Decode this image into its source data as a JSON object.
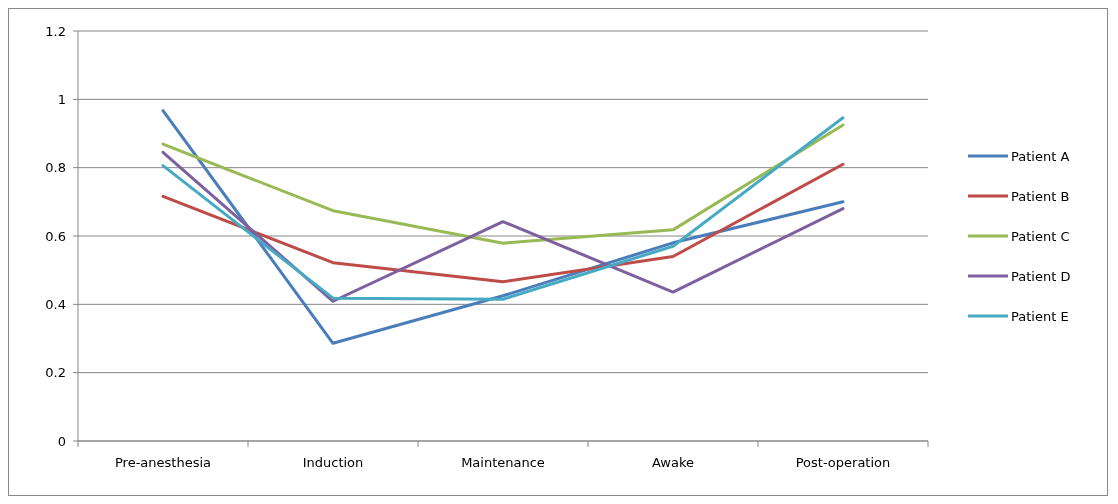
{
  "chart_data": {
    "type": "line",
    "categories": [
      "Pre-anesthesia",
      "Induction",
      "Maintenance",
      "Awake",
      "Post-operation"
    ],
    "series": [
      {
        "name": "Patient A",
        "color": "#4a7ebb",
        "values": [
          0.967,
          0.286,
          0.425,
          0.58,
          0.7
        ]
      },
      {
        "name": "Patient B",
        "color": "#be4b48",
        "values": [
          0.716,
          0.522,
          0.466,
          0.54,
          0.81
        ]
      },
      {
        "name": "Patient C",
        "color": "#98b954",
        "values": [
          0.869,
          0.674,
          0.579,
          0.618,
          0.925
        ]
      },
      {
        "name": "Patient D",
        "color": "#7d60a0",
        "values": [
          0.845,
          0.409,
          0.642,
          0.436,
          0.68
        ]
      },
      {
        "name": "Patient E",
        "color": "#46aac5",
        "values": [
          0.806,
          0.418,
          0.415,
          0.57,
          0.946
        ]
      }
    ],
    "ylim": [
      0,
      1.2
    ],
    "yticks": [
      0,
      0.2,
      0.4,
      0.6,
      0.8,
      1,
      1.2
    ],
    "grid": "y",
    "legend": "right",
    "marker": "none",
    "line_style": "solid"
  }
}
